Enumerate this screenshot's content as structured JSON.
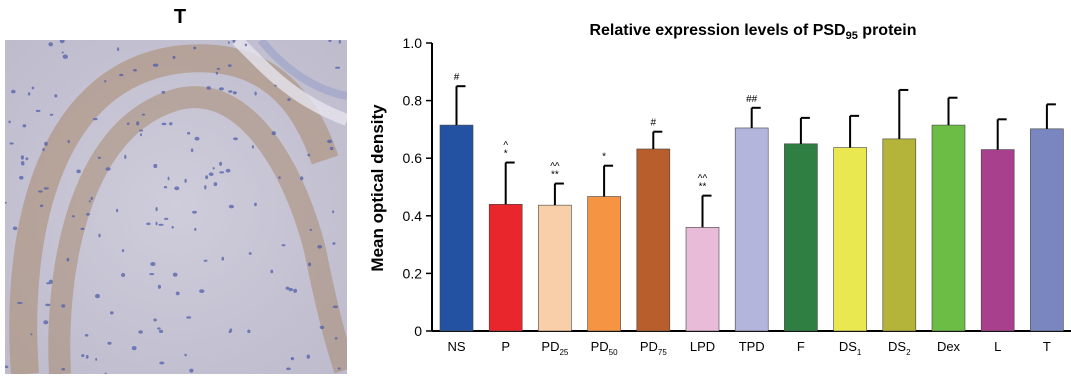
{
  "panel_label": "T",
  "image": {
    "description_icon": "tissue-micrograph",
    "tissue_color": "#c9c7d6",
    "stain_color": "#a98a6d",
    "nuclei_color": "#4a5aa8"
  },
  "chart_data": {
    "type": "bar",
    "title": "Relative expression levels of PSD",
    "title_sub": "95",
    "title_suffix": " protein",
    "ylabel": "Mean optical density",
    "xlabel": "",
    "ylim": [
      0,
      1.0
    ],
    "yticks": [
      {
        "v": 0,
        "label": "0"
      },
      {
        "v": 0.2,
        "label": "0.2"
      },
      {
        "v": 0.4,
        "label": "0.4"
      },
      {
        "v": 0.6,
        "label": "0.6"
      },
      {
        "v": 0.8,
        "label": "0.8"
      },
      {
        "v": 1.0,
        "label": "1.0"
      }
    ],
    "grid": false,
    "legend": "none",
    "bars": [
      {
        "label": "NS",
        "sub": "",
        "value": 0.715,
        "err": 0.135,
        "color": "#2452a3",
        "marks": [
          "#"
        ]
      },
      {
        "label": "P",
        "sub": "",
        "value": 0.44,
        "err": 0.145,
        "color": "#e8262c",
        "marks": [
          "*",
          "^"
        ]
      },
      {
        "label": "PD",
        "sub": "25",
        "value": 0.437,
        "err": 0.075,
        "color": "#f9cfaa",
        "marks": [
          "**",
          "^^"
        ]
      },
      {
        "label": "PD",
        "sub": "50",
        "value": 0.467,
        "err": 0.107,
        "color": "#f59443",
        "marks": [
          "*"
        ]
      },
      {
        "label": "PD",
        "sub": "75",
        "value": 0.632,
        "err": 0.06,
        "color": "#b85e2d",
        "marks": [
          "#"
        ]
      },
      {
        "label": "LPD",
        "sub": "",
        "value": 0.36,
        "err": 0.11,
        "color": "#e8bcd9",
        "marks": [
          "**",
          "^^"
        ]
      },
      {
        "label": "TPD",
        "sub": "",
        "value": 0.705,
        "err": 0.07,
        "color": "#b3b5dd",
        "marks": [
          "##"
        ]
      },
      {
        "label": "F",
        "sub": "",
        "value": 0.65,
        "err": 0.09,
        "color": "#2f7e42",
        "marks": []
      },
      {
        "label": "DS",
        "sub": "1",
        "value": 0.637,
        "err": 0.11,
        "color": "#eae851",
        "marks": []
      },
      {
        "label": "DS",
        "sub": "2",
        "value": 0.667,
        "err": 0.17,
        "color": "#b4b43b",
        "marks": []
      },
      {
        "label": "Dex",
        "sub": "",
        "value": 0.715,
        "err": 0.095,
        "color": "#6bbd45",
        "marks": []
      },
      {
        "label": "L",
        "sub": "",
        "value": 0.63,
        "err": 0.105,
        "color": "#a8408e",
        "marks": []
      },
      {
        "label": "T",
        "sub": "",
        "value": 0.702,
        "err": 0.085,
        "color": "#7a86bf",
        "marks": []
      }
    ]
  }
}
